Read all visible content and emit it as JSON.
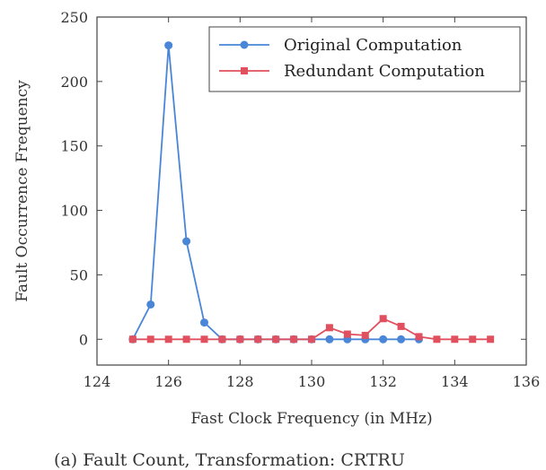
{
  "chart_data": {
    "type": "line",
    "xlabel": "Fast Clock Frequency (in MHz)",
    "ylabel": "Fault Occurrence Frequency",
    "xlim": [
      124,
      136
    ],
    "ylim": [
      -20,
      250
    ],
    "xticks": [
      124,
      126,
      128,
      130,
      132,
      134,
      136
    ],
    "yticks": [
      0,
      50,
      100,
      150,
      200,
      250
    ],
    "grid": false,
    "legend_position": "top-right",
    "series": [
      {
        "name": "Original Computation",
        "color": "#4a86d8",
        "marker": "circle",
        "x": [
          125,
          125.5,
          126,
          126.5,
          127,
          127.5,
          128,
          128.5,
          129,
          129.5,
          130,
          130.5,
          131,
          131.5,
          132,
          132.5,
          133
        ],
        "y": [
          0,
          27,
          228,
          76,
          13,
          0,
          0,
          0,
          0,
          0,
          0,
          0,
          0,
          0,
          0,
          0,
          0
        ]
      },
      {
        "name": "Redundant Computation",
        "color": "#e0505e",
        "marker": "square",
        "x": [
          125,
          125.5,
          126,
          126.5,
          127,
          127.5,
          128,
          128.5,
          129,
          129.5,
          130,
          130.5,
          131,
          131.5,
          132,
          132.5,
          133,
          133.5,
          134,
          134.5,
          135
        ],
        "y": [
          0,
          0,
          0,
          0,
          0,
          0,
          0,
          0,
          0,
          0,
          0,
          9,
          4,
          3,
          16,
          10,
          2,
          0,
          0,
          0,
          0
        ]
      }
    ]
  },
  "caption": "(a) Fault Count, Transformation: CRTRU"
}
